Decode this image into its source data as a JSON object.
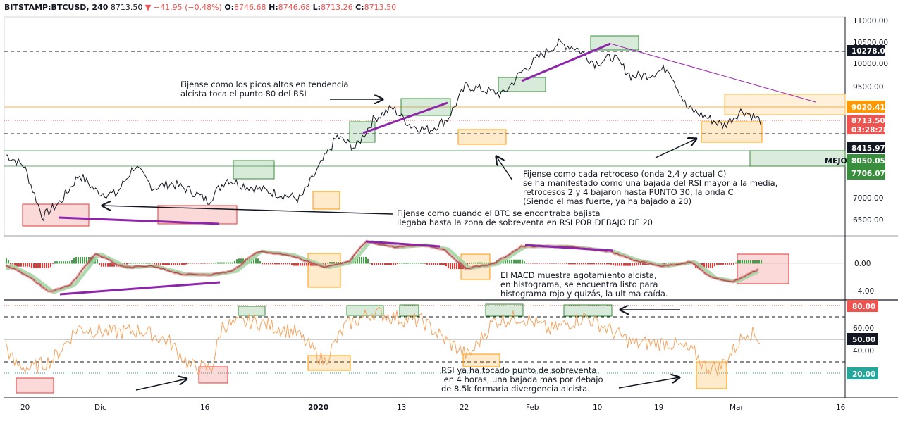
{
  "header": {
    "symbol": "BITSTAMP:BTCUSD, 240",
    "price": "8713.50",
    "arrow": "▼",
    "change": "−41.95 (−0.48%)",
    "o_label": "O:",
    "o_value": "8746.68",
    "h_label": "H:",
    "h_value": "8746.68",
    "l_label": "L:",
    "l_value": "8713.26",
    "c_label": "C:",
    "c_value": "8713.50"
  },
  "chart_data": {
    "type": "line",
    "price_axis": {
      "ticks": [
        "11000.00",
        "10500.00",
        "10000.00",
        "9500.00",
        "7000.00",
        "6500.00"
      ],
      "badges": [
        {
          "text": "10278.05",
          "color": "#131722"
        },
        {
          "text": "9020.41",
          "color": "#ff9800"
        },
        {
          "text": "8713.50",
          "color": "#ef5350"
        },
        {
          "text": "03:28:28",
          "color": "#ef5350"
        },
        {
          "text": "8415.97",
          "color": "#131722"
        },
        {
          "text": "8050.05",
          "color": "#388e3c"
        },
        {
          "text": "7706.07",
          "color": "#388e3c"
        }
      ]
    },
    "macd_axis": {
      "ticks": [
        "0.00",
        "−4.00"
      ]
    },
    "rsi_axis": {
      "ticks": [
        "60.00",
        "40.00"
      ],
      "badges": [
        {
          "text": "80.00",
          "color": "#ef5350"
        },
        {
          "text": "50.00",
          "color": "#131722"
        },
        {
          "text": "20.00",
          "color": "#26a69a"
        }
      ]
    },
    "x_ticks": [
      "20",
      "Dic",
      "16",
      "2020",
      "13",
      "22",
      "Feb",
      "10",
      "19",
      "Mar",
      "16"
    ],
    "price_series_anchors": [
      7950,
      7700,
      6550,
      6900,
      7500,
      7100,
      7050,
      7700,
      7200,
      7300,
      7150,
      6900,
      7400,
      7250,
      7150,
      7050,
      6950,
      7650,
      8350,
      8100,
      8750,
      9000,
      8600,
      8500,
      8750,
      9500,
      9400,
      9300,
      9800,
      10150,
      10450,
      10350,
      10000,
      10150,
      9700,
      9750,
      9900,
      9000,
      8800,
      8600,
      8950,
      8715
    ],
    "horizontal_levels": [
      10278.05,
      9020.41,
      8713.5,
      8415.97,
      8050.05,
      7706.07
    ],
    "rsi_levels": [
      80,
      70,
      50,
      30,
      20
    ],
    "annotations": [
      "Fijense como los picos altos en tendencia\nalcista toca el punto 80 del RSI",
      "Fijense como cada retroceso (onda 2,4 y actual C)\nse ha manifestado como una bajada del RSI mayor a la media,\nretrocesos 2 y 4 bajaron hasta PUNTO 30,  la onda C\n(Siendo el mas fuerte, ya ha bajado a 20)",
      "Fijense como cuando el BTC se encontraba bajista\nllegaba hasta la zona de sobreventa en RSI POR DEBAJO DE 20",
      "El MACD muestra agotamiento alcista,\nen histograma, se encuentra listo para\nhistograma rojo y quizás, la ultima caída.",
      "RSI ya ha tocado punto de sobreventa\n en 4 horas, una bajada mas por debajo\nde 8.5k formaria divergencia alcista."
    ],
    "edge_label": "MEJO"
  }
}
